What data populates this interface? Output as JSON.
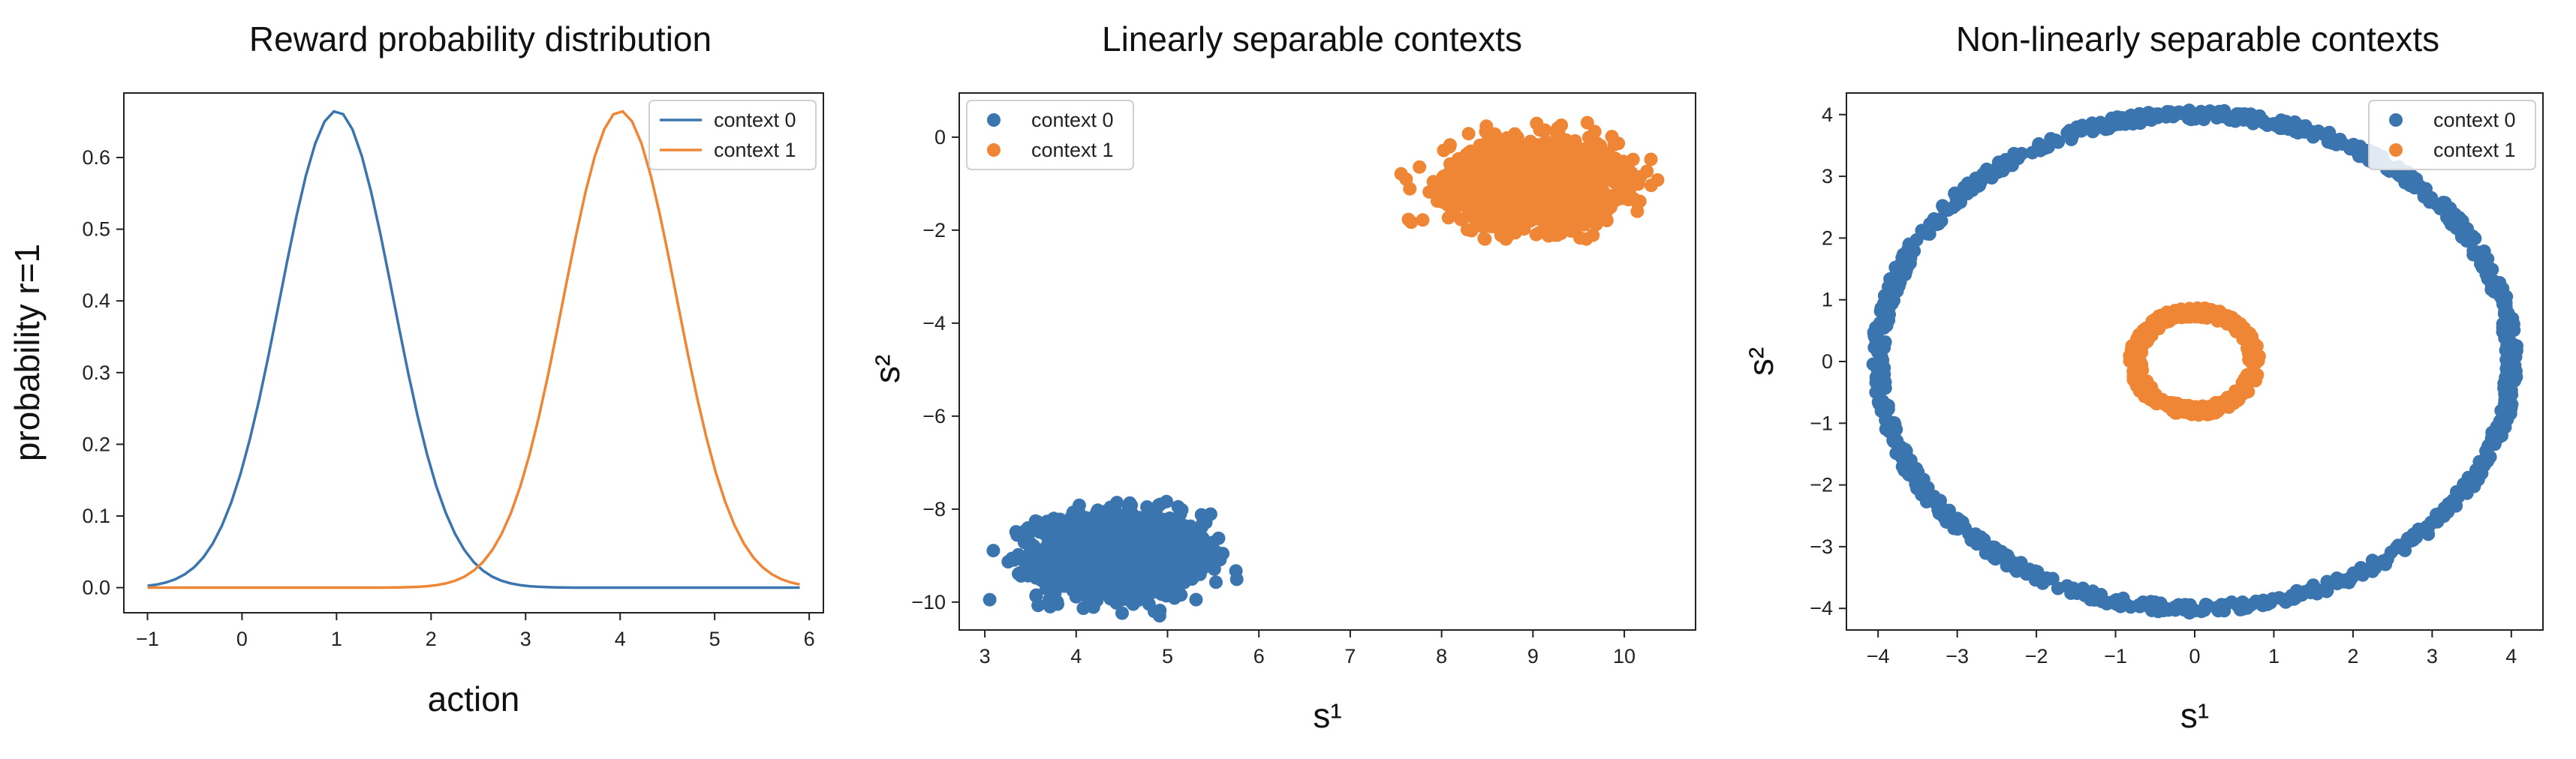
{
  "chart_data": [
    {
      "type": "line",
      "title": "Reward probability distribution",
      "xlabel": "action",
      "ylabel": "probability r=1",
      "xlim": [
        -1.25,
        6.15
      ],
      "ylim": [
        -0.035,
        0.69
      ],
      "xticks": [
        -1,
        0,
        1,
        2,
        3,
        4,
        5,
        6
      ],
      "yticks": [
        0.0,
        0.1,
        0.2,
        0.3,
        0.4,
        0.5,
        0.6
      ],
      "grid": false,
      "legend": "top-right",
      "colors": [
        "#3b75af",
        "#ef8636"
      ],
      "x_range": [
        -1,
        5.9
      ],
      "series": [
        {
          "name": "context 0",
          "peak_x": 1,
          "peak_y": 0.665,
          "sigma": 0.6
        },
        {
          "name": "context 1",
          "peak_x": 4,
          "peak_y": 0.665,
          "sigma": 0.6
        }
      ]
    },
    {
      "type": "scatter",
      "title": "Linearly separable contexts",
      "xlabel": "s¹",
      "ylabel": "s²",
      "xlim": [
        2.72,
        10.78
      ],
      "ylim": [
        -10.6,
        0.95
      ],
      "xticks": [
        3,
        4,
        5,
        6,
        7,
        8,
        9,
        10
      ],
      "yticks": [
        0,
        -2,
        -4,
        -6,
        -8,
        -10
      ],
      "grid": false,
      "legend": "top-left",
      "colors": [
        "#3b75af",
        "#ef8636"
      ],
      "series": [
        {
          "name": "context 0",
          "center": [
            4.5,
            -9.0
          ],
          "spread": [
            0.45,
            0.45
          ],
          "extent_x": [
            3.0,
            5.8
          ],
          "extent_y": [
            -10.3,
            -7.7
          ]
        },
        {
          "name": "context 1",
          "center": [
            9.0,
            -1.0
          ],
          "spread": [
            0.45,
            0.45
          ],
          "extent_x": [
            7.5,
            10.5
          ],
          "extent_y": [
            -2.2,
            0.4
          ]
        }
      ]
    },
    {
      "type": "scatter",
      "title": "Non-linearly separable contexts",
      "xlabel": "s¹",
      "ylabel": "s²",
      "xlim": [
        -4.4,
        4.4
      ],
      "ylim": [
        -4.35,
        4.35
      ],
      "xticks": [
        -4,
        -3,
        -2,
        -1,
        0,
        1,
        2,
        3,
        4
      ],
      "yticks": [
        4,
        3,
        2,
        1,
        0,
        -1,
        -2,
        -3,
        -4
      ],
      "grid": false,
      "legend": "top-right",
      "colors": [
        "#3b75af",
        "#ef8636"
      ],
      "series": [
        {
          "name": "context 0",
          "shape": "ring",
          "radius_x": 4.0,
          "radius_y": 4.0,
          "thickness": 0.16
        },
        {
          "name": "context 1",
          "shape": "ring",
          "radius_x": 0.75,
          "radius_y": 0.8,
          "thickness": 0.16
        }
      ]
    }
  ]
}
